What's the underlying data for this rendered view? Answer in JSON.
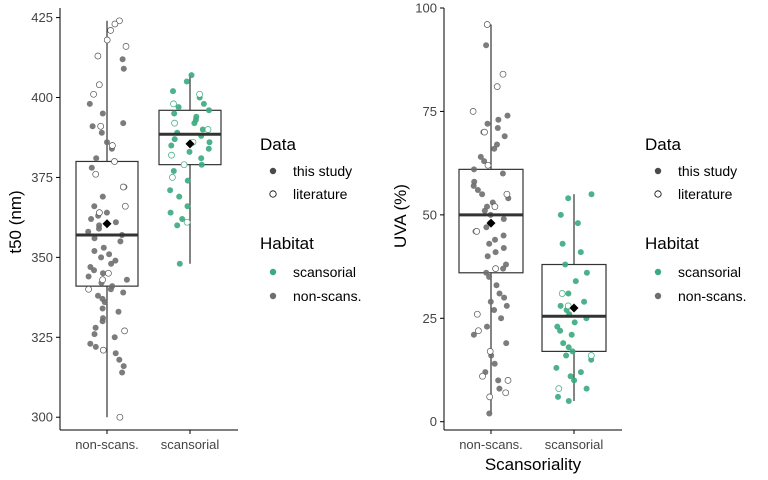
{
  "legend": {
    "data_title": "Data",
    "data_items": [
      "this study",
      "literature"
    ],
    "habitat_title": "Habitat",
    "habitat_items": [
      "scansorial",
      "non-scans."
    ]
  },
  "colors": {
    "scansorial": "#3aaa7f",
    "non_scans": "#6e6e6e",
    "this_study_key": "#4a4a4a",
    "box": "#000000"
  },
  "chart_data": [
    {
      "type": "box",
      "title": "",
      "xlabel": "",
      "ylabel": "t50 (nm)",
      "categories": [
        "non-scans.",
        "scansorial"
      ],
      "yticks": [
        300,
        325,
        350,
        375,
        400,
        425
      ],
      "ylim": [
        296,
        428
      ],
      "grid": false,
      "legend_position": "right",
      "boxes": [
        {
          "category": "non-scans.",
          "habitat": "non-scans.",
          "min": 300,
          "q1": 341,
          "median": 357,
          "q3": 380,
          "max": 424,
          "mean": 360.5
        },
        {
          "category": "scansorial",
          "habitat": "scansorial",
          "min": 348,
          "q1": 379,
          "median": 388.5,
          "q3": 396,
          "max": 407,
          "mean": 385.5
        }
      ],
      "points": [
        {
          "category": "non-scans.",
          "source": "this study",
          "values": [
            412,
            409,
            398,
            395,
            392,
            391,
            389,
            386,
            384,
            381,
            378,
            372,
            369,
            366,
            364,
            363,
            362,
            361,
            360,
            359,
            358,
            357,
            356,
            355,
            353,
            352,
            351,
            350,
            349,
            348,
            347,
            346,
            345,
            344,
            343,
            342,
            341,
            340,
            339,
            338,
            337,
            336,
            334,
            333,
            331,
            330,
            328,
            326,
            325,
            323,
            322,
            320,
            318,
            316,
            314
          ]
        },
        {
          "category": "non-scans.",
          "source": "literature",
          "values": [
            424,
            423,
            421,
            418,
            416,
            413,
            404,
            401,
            391,
            385,
            380,
            376,
            372,
            366,
            364,
            345,
            343,
            340,
            327,
            321,
            300
          ]
        },
        {
          "category": "scansorial",
          "source": "this study",
          "values": [
            407,
            405,
            402,
            400,
            398,
            397,
            396,
            395,
            394,
            393,
            392,
            390,
            389,
            388,
            387,
            386,
            385,
            384,
            383,
            381,
            379,
            377,
            374,
            371,
            369,
            366,
            364,
            362,
            360,
            348
          ]
        },
        {
          "category": "scansorial",
          "source": "literature",
          "values": [
            401,
            398,
            392,
            390,
            386,
            382,
            379,
            375,
            361
          ]
        }
      ]
    },
    {
      "type": "box",
      "title": "",
      "xlabel": "Scansoriality",
      "ylabel": "UVA (%)",
      "categories": [
        "non-scans.",
        "scansorial"
      ],
      "yticks": [
        0,
        25,
        50,
        75,
        100
      ],
      "ylim": [
        -2,
        100
      ],
      "grid": false,
      "legend_position": "right",
      "boxes": [
        {
          "category": "non-scans.",
          "habitat": "non-scans.",
          "min": 2,
          "q1": 36,
          "median": 50,
          "q3": 61,
          "max": 96,
          "mean": 48
        },
        {
          "category": "scansorial",
          "habitat": "scansorial",
          "min": 5,
          "q1": 17,
          "median": 25.5,
          "q3": 38,
          "max": 55,
          "mean": 27.5
        }
      ],
      "points": [
        {
          "category": "non-scans.",
          "source": "this study",
          "values": [
            91,
            74,
            73,
            72,
            71,
            70,
            69,
            67,
            66,
            64,
            63,
            61,
            60,
            58,
            57,
            56,
            55,
            54,
            53,
            52,
            51,
            50,
            49,
            48,
            47,
            46,
            45,
            44,
            43,
            42,
            41,
            40,
            38,
            37,
            36,
            35,
            33,
            31,
            30,
            29,
            28,
            27,
            25,
            23,
            21,
            19,
            16,
            14,
            12,
            10,
            8,
            2
          ]
        },
        {
          "category": "non-scans.",
          "source": "literature",
          "values": [
            96,
            84,
            81,
            75,
            70,
            62,
            55,
            52,
            46,
            37,
            26,
            22,
            17,
            11,
            10,
            7,
            6
          ]
        },
        {
          "category": "scansorial",
          "source": "this study",
          "values": [
            55,
            54,
            50,
            48,
            43,
            41,
            38,
            36,
            34,
            31,
            29,
            28,
            27,
            26,
            25,
            24,
            23,
            22,
            21,
            19,
            18,
            17,
            16,
            15,
            13,
            12,
            11,
            10,
            8,
            6,
            5
          ]
        },
        {
          "category": "scansorial",
          "source": "literature",
          "values": [
            31,
            28,
            16,
            8
          ]
        }
      ]
    }
  ]
}
